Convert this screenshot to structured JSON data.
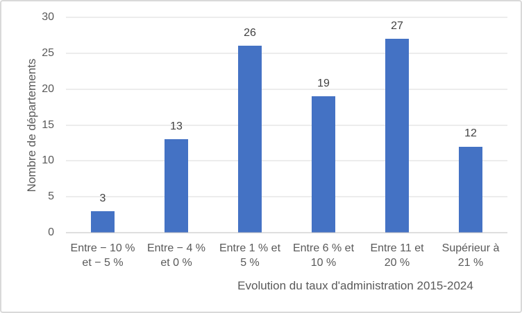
{
  "chart_data": {
    "type": "bar",
    "categories": [
      "Entre − 10 %\net − 5 %",
      "Entre − 4 %\net 0 %",
      "Entre 1 % et\n5 %",
      "Entre 6 % et\n10 %",
      "Entre 11 et\n20 %",
      "Supérieur à\n21 %"
    ],
    "values": [
      3,
      13,
      26,
      19,
      27,
      12
    ],
    "title": "",
    "xlabel": "Evolution du taux d'administration 2015-2024",
    "ylabel": "Nombre de départements",
    "ylim": [
      0,
      30
    ],
    "yticks": [
      0,
      5,
      10,
      15,
      20,
      25,
      30
    ],
    "grid": true,
    "legend": false,
    "colors": {
      "bar": "#4472C4",
      "gridline": "#D9D9D9",
      "axis_line": "#BFBFBF",
      "axis_text": "#595959",
      "data_label": "#404040",
      "frame_border": "#D9D9D9"
    }
  }
}
